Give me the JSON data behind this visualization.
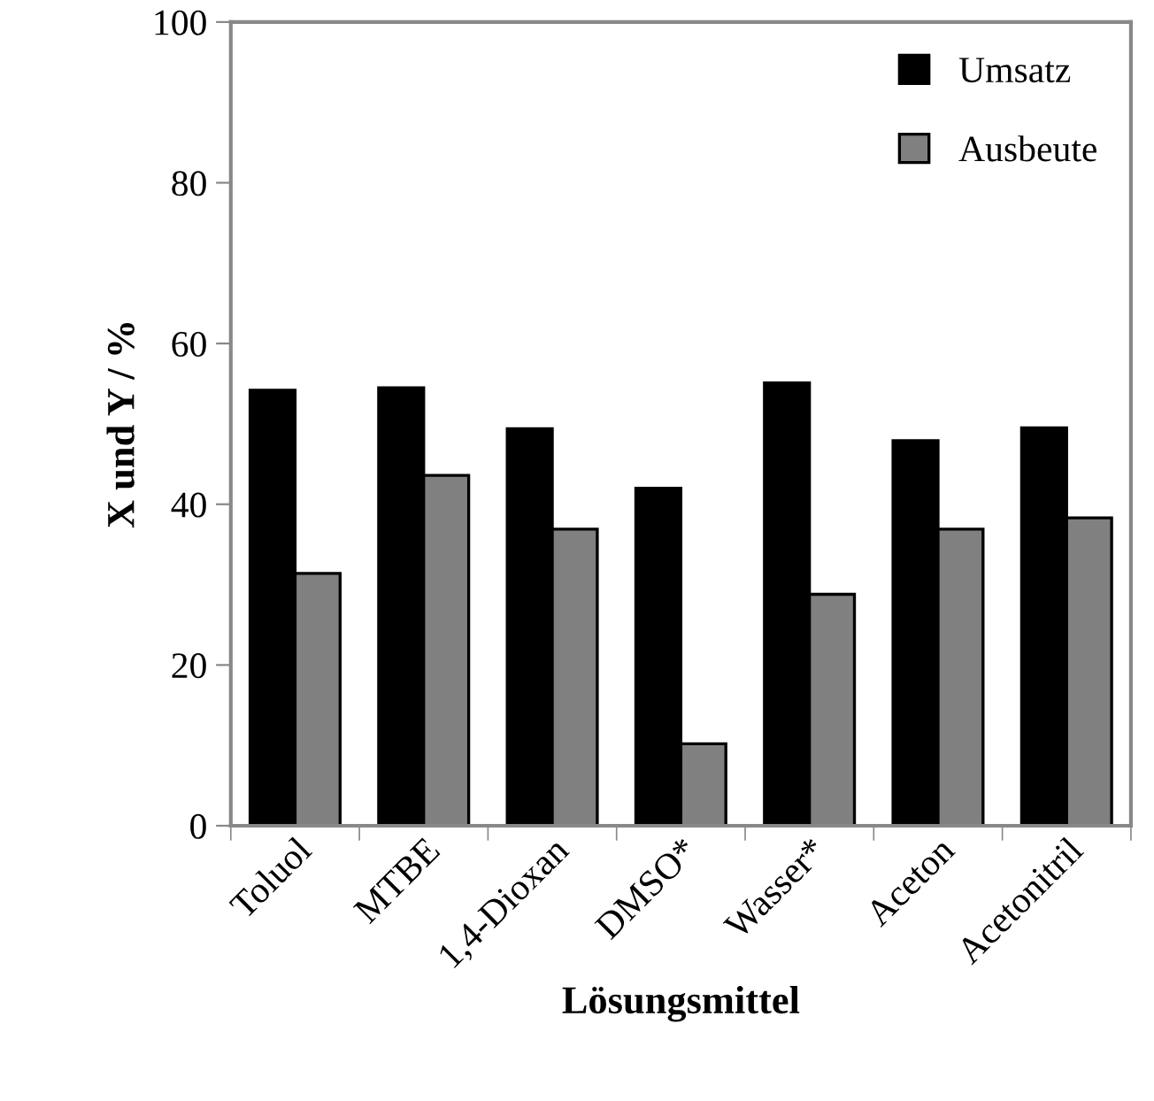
{
  "chart_data": {
    "type": "bar",
    "xlabel": "Lösungsmittel",
    "ylabel": "X und Y / %",
    "categories": [
      "Toluol",
      "MTBE",
      "1,4-Dioxan",
      "DMSO*",
      "Wasser*",
      "Aceton",
      "Acetonitril"
    ],
    "series": [
      {
        "name": "Umsatz",
        "color": "#000000",
        "values": [
          54.2,
          54.5,
          49.4,
          42.0,
          55.1,
          47.9,
          49.5
        ]
      },
      {
        "name": "Ausbeute",
        "color": "#808080",
        "values": [
          31.4,
          43.6,
          36.9,
          10.2,
          28.8,
          36.9,
          38.3
        ]
      }
    ],
    "ylim": [
      0,
      100
    ],
    "yticks": [
      0,
      20,
      40,
      60,
      80,
      100
    ],
    "grid": false,
    "legend": "top right"
  }
}
